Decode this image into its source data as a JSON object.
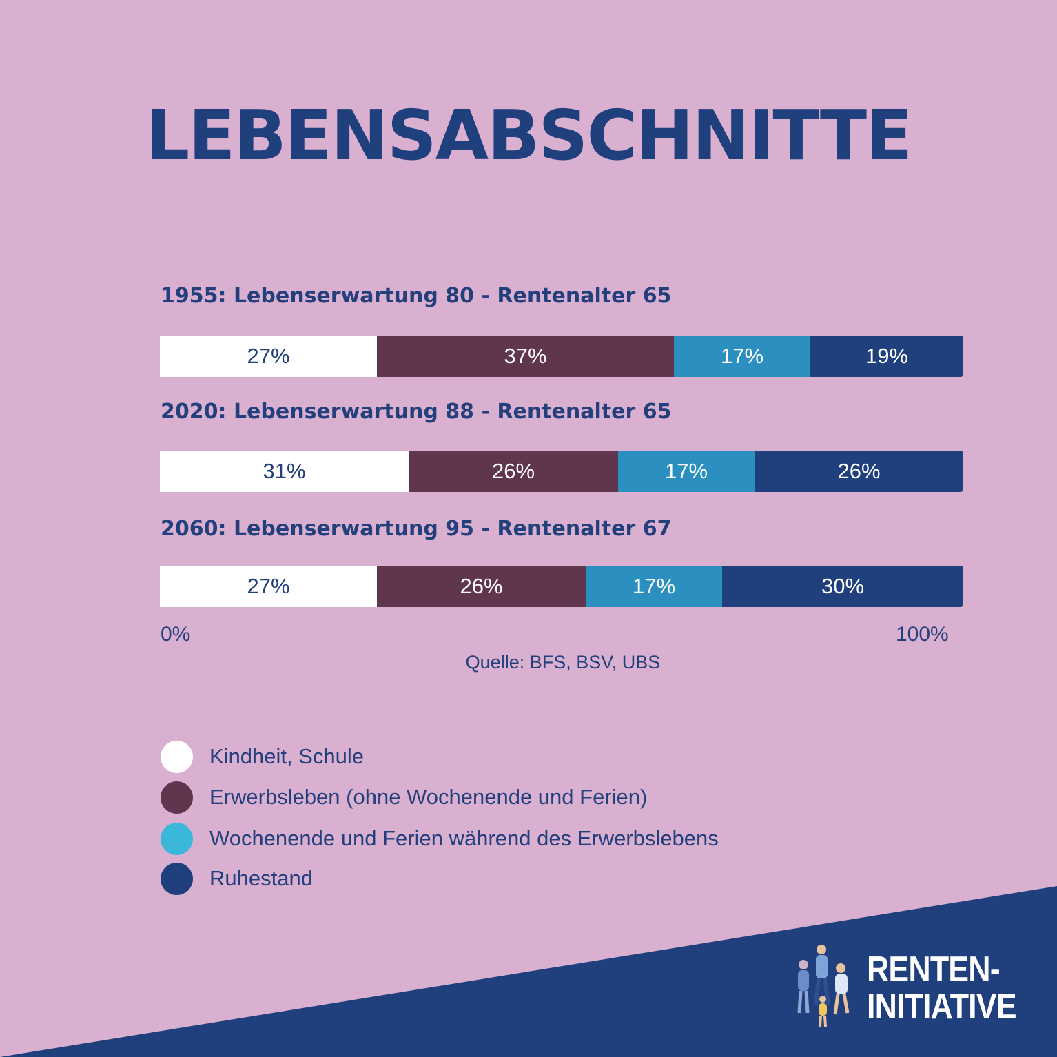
{
  "title": "LEBENSABSCHNITTE",
  "colors": {
    "background": "#d9b0d0",
    "kindheit": "#ffffff",
    "erwerbsleben": "#60364f",
    "wochenende": "#2b8fbf",
    "ruhestand": "#1f3f7d",
    "text": "#233f7c"
  },
  "chart_data": {
    "type": "bar",
    "orientation": "horizontal",
    "stacked": true,
    "categories": [
      "1955: Lebenserwartung 80 - Rentenalter 65",
      "2020: Lebenserwartung 88 - Rentenalter 65",
      "2060: Lebenserwartung 95 - Rentenalter 67"
    ],
    "series": [
      {
        "name": "Kindheit, Schule",
        "values": [
          27,
          31,
          27
        ],
        "labels": [
          "27%",
          "31%",
          "27%"
        ],
        "color": "#ffffff",
        "text_color": "#233f7c"
      },
      {
        "name": "Erwerbsleben (ohne Wochenende und Ferien)",
        "values": [
          37,
          26,
          26
        ],
        "labels": [
          "37%",
          "26%",
          "26%"
        ],
        "color": "#60364f",
        "text_color": "#ffffff"
      },
      {
        "name": "Wochenende und Ferien während des Erwerbslebens",
        "values": [
          17,
          17,
          17
        ],
        "labels": [
          "17%",
          "17%",
          "17%"
        ],
        "color": "#2b8fbf",
        "text_color": "#ffffff"
      },
      {
        "name": "Ruhestand",
        "values": [
          19,
          26,
          30
        ],
        "labels": [
          "19%",
          "26%",
          "30%"
        ],
        "color": "#1f3f7d",
        "text_color": "#ffffff"
      }
    ],
    "xlim": [
      0,
      100
    ],
    "x_start_label": "0%",
    "x_end_label": "100%",
    "source": "Quelle: BFS, BSV, UBS",
    "legend_position": "bottom-left",
    "legend_dot_colors": [
      "#ffffff",
      "#60364f",
      "#3bb8d9",
      "#1f3f7d"
    ],
    "grid": false
  },
  "logo": {
    "line1": "RENTEN-",
    "line2": "INITIATIVE"
  }
}
